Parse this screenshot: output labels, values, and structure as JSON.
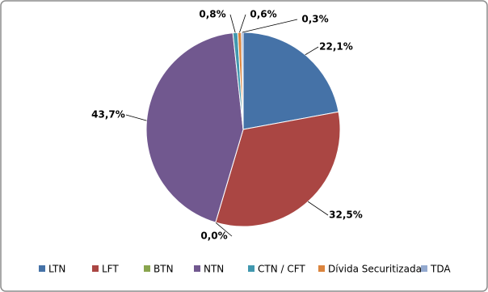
{
  "chart_data": {
    "type": "pie",
    "categories": [
      "LTN",
      "LFT",
      "BTN",
      "NTN",
      "CTN / CFT",
      "Dívida Securitizada",
      "TDA"
    ],
    "values": [
      22.1,
      32.5,
      0.0,
      43.7,
      0.8,
      0.6,
      0.3
    ],
    "value_labels": [
      "22,1%",
      "32,5%",
      "0,0%",
      "43,7%",
      "0,8%",
      "0,6%",
      "0,3%"
    ],
    "colors": [
      "#4572a7",
      "#aa4643",
      "#89a54e",
      "#71588f",
      "#4198af",
      "#db843d",
      "#93a9cf"
    ],
    "legend": "bottom"
  }
}
